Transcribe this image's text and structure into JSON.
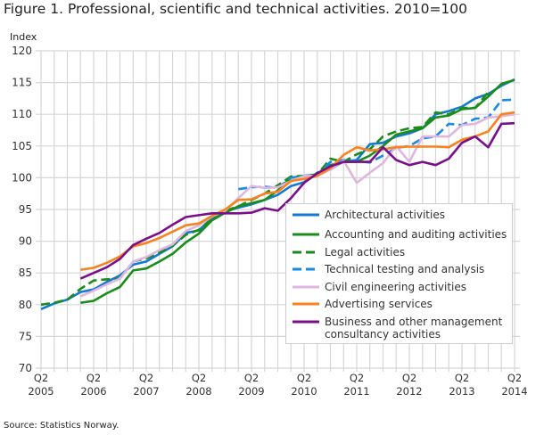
{
  "title": "Figure 1. Professional, scientific and technical activities. 2010=100",
  "source": "Source: Statistics Norway.",
  "chart_data": {
    "type": "line",
    "title": "Figure 1. Professional, scientific and technical activities. 2010=100",
    "ylabel": "Index",
    "xlabel": "",
    "ylim": [
      70,
      120
    ],
    "yticks": [
      70,
      75,
      80,
      85,
      90,
      95,
      100,
      105,
      110,
      115,
      120
    ],
    "grid": true,
    "legend_position": "bottom-right",
    "x": [
      "2005Q2",
      "2005Q3",
      "2005Q4",
      "2006Q1",
      "2006Q2",
      "2006Q3",
      "2006Q4",
      "2007Q1",
      "2007Q2",
      "2007Q3",
      "2007Q4",
      "2008Q1",
      "2008Q2",
      "2008Q3",
      "2008Q4",
      "2009Q1",
      "2009Q2",
      "2009Q3",
      "2009Q4",
      "2010Q1",
      "2010Q2",
      "2010Q3",
      "2010Q4",
      "2011Q1",
      "2011Q2",
      "2011Q3",
      "2011Q4",
      "2012Q1",
      "2012Q2",
      "2012Q3",
      "2012Q4",
      "2013Q1",
      "2013Q2",
      "2013Q3",
      "2013Q4",
      "2014Q1",
      "2014Q2"
    ],
    "xticks": [
      {
        "q": "Q2",
        "year": "2005"
      },
      {
        "q": "Q2",
        "year": "2006"
      },
      {
        "q": "Q2",
        "year": "2007"
      },
      {
        "q": "Q2",
        "year": "2008"
      },
      {
        "q": "Q2",
        "year": "2009"
      },
      {
        "q": "Q2",
        "year": "2010"
      },
      {
        "q": "Q2",
        "year": "2011"
      },
      {
        "q": "Q2",
        "year": "2012"
      },
      {
        "q": "Q2",
        "year": "2013"
      },
      {
        "q": "Q2",
        "year": "2014"
      }
    ],
    "series": [
      {
        "name": "Architectural activities",
        "color": "#1379d3",
        "dash": false,
        "values": [
          79.3,
          80.2,
          80.8,
          82,
          82.4,
          83.6,
          84.6,
          86.3,
          86.8,
          88,
          89.2,
          91.3,
          91.7,
          93.7,
          94.7,
          95.3,
          95.8,
          96.5,
          97.3,
          98.7,
          99.3,
          100.8,
          101.3,
          102.6,
          102.8,
          105.3,
          105.5,
          106.5,
          107,
          107.8,
          110,
          110.5,
          111.2,
          112.5,
          113.2,
          114.5,
          115.5
        ]
      },
      {
        "name": "Accounting and auditing activities",
        "color": "#1a8c1a",
        "dash": false,
        "values": [
          null,
          null,
          null,
          80.3,
          80.6,
          81.8,
          82.8,
          85.4,
          85.7,
          86.8,
          88,
          89.8,
          91.2,
          93.3,
          94.5,
          95.5,
          96,
          96.5,
          98,
          100,
          100.3,
          100.5,
          102,
          102.5,
          102.5,
          103.5,
          105,
          106.8,
          107.3,
          107.8,
          109.5,
          109.8,
          110.8,
          111,
          112.8,
          114.8,
          115.4
        ]
      },
      {
        "name": "Legal activities",
        "color": "#1a8c1a",
        "dash": true,
        "values": [
          80,
          80.3,
          80.8,
          82.5,
          83.8,
          84,
          84.1,
          86.8,
          87.3,
          88.2,
          89.3,
          91,
          91.8,
          93.5,
          94.8,
          95.5,
          96.5,
          97.5,
          98.8,
          100.2,
          100.3,
          100.5,
          103,
          102.5,
          103.7,
          104.5,
          106.5,
          107.3,
          107.8,
          108,
          110.3,
          110,
          111,
          111,
          113.5,
          null,
          null
        ]
      },
      {
        "name": "Technical testing and analysis",
        "color": "#1a8ae0",
        "dash": true,
        "values": [
          null,
          null,
          null,
          null,
          null,
          null,
          null,
          null,
          null,
          null,
          null,
          null,
          null,
          null,
          null,
          98.2,
          98.5,
          98.6,
          98.4,
          100,
          100.3,
          100.5,
          102.5,
          102.8,
          102.6,
          102.4,
          103.5,
          104.7,
          105,
          106.2,
          106.5,
          108.5,
          108.3,
          109.3,
          109.5,
          112.2,
          112.3
        ]
      },
      {
        "name": "Civil engineering activities",
        "color": "#dfb6df",
        "dash": false,
        "values": [
          null,
          null,
          null,
          81.3,
          82.2,
          83.2,
          84.1,
          86.8,
          87.5,
          88.6,
          89.5,
          91.6,
          92.5,
          93.9,
          94.8,
          96.8,
          98.7,
          98.4,
          98.5,
          99.5,
          100.3,
          100.3,
          101.3,
          102.7,
          99.2,
          100.8,
          102.3,
          105,
          102.5,
          106.5,
          106.5,
          106.5,
          108.3,
          108.5,
          109.5,
          109.7,
          110
        ]
      },
      {
        "name": "Advertising services",
        "color": "#f7821e",
        "dash": false,
        "values": [
          null,
          null,
          null,
          85.5,
          85.8,
          86.6,
          87.6,
          89.2,
          89.7,
          90.5,
          91.5,
          92.5,
          92.8,
          94,
          95,
          96.5,
          96.6,
          97.5,
          97.8,
          99.5,
          99.8,
          100.3,
          101.5,
          103.6,
          104.8,
          104.3,
          104.5,
          104.8,
          104.9,
          104.9,
          104.9,
          104.8,
          106,
          106.5,
          107.3,
          110,
          110.3
        ]
      },
      {
        "name": "Business and other management consultancy activities",
        "color": "#7a0f8a",
        "dash": false,
        "values": [
          null,
          null,
          null,
          84.1,
          85,
          85.9,
          87.2,
          89.4,
          90.4,
          91.3,
          92.6,
          93.8,
          94.1,
          94.4,
          94.4,
          94.4,
          94.5,
          95.2,
          94.8,
          96.8,
          99.2,
          100.7,
          101.8,
          102.5,
          102.5,
          102.5,
          104.8,
          102.8,
          102,
          102.5,
          102,
          103,
          105.5,
          106.5,
          104.8,
          108.5,
          108.6
        ]
      }
    ]
  },
  "legend": {
    "items": [
      "Architectural activities",
      "Accounting and auditing activities",
      "Legal activities",
      "Technical testing and analysis",
      "Civil engineering activities",
      "Advertising services",
      "Business and other management"
    ],
    "last_item_line2": "consultancy activities"
  }
}
